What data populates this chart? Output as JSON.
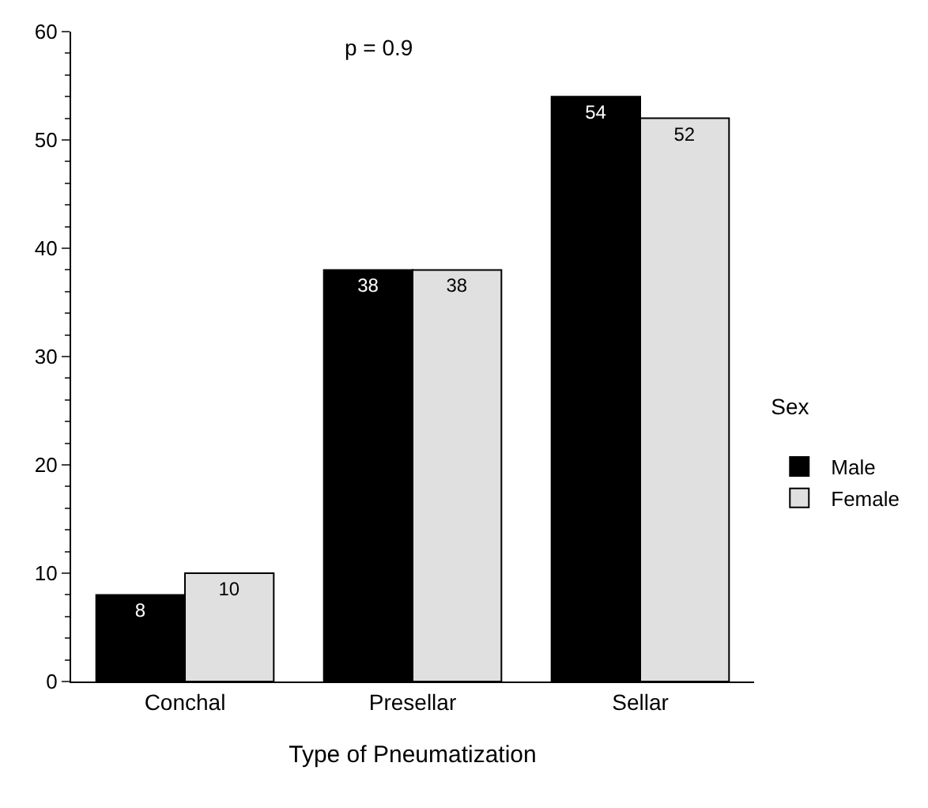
{
  "chart_data": {
    "type": "bar",
    "xlabel": "Type of Pneumatization",
    "legend_title": "Sex",
    "categories": [
      "Conchal",
      "Presellar",
      "Sellar"
    ],
    "series": [
      {
        "name": "Male",
        "color": "#000000",
        "values": [
          8,
          38,
          54
        ]
      },
      {
        "name": "Female",
        "color": "#e0e0e0",
        "values": [
          10,
          38,
          52
        ]
      }
    ],
    "ylim": [
      0,
      60
    ],
    "yticks": [
      0,
      10,
      20,
      30,
      40,
      50,
      60
    ],
    "grid": false,
    "legend": "right",
    "data_labels": true,
    "annotations": [
      "p = 0.9"
    ]
  }
}
